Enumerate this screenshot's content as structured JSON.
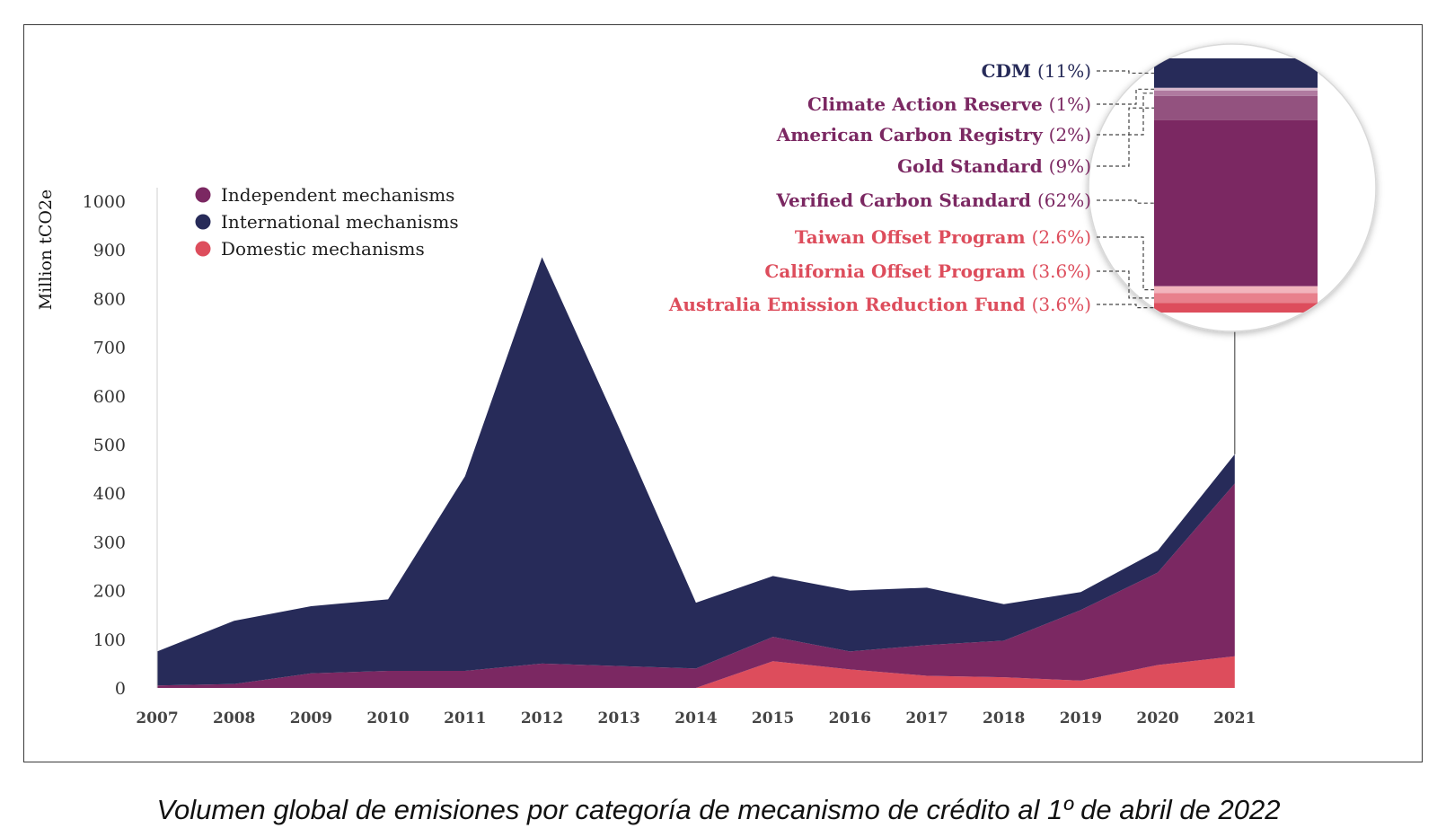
{
  "colors": {
    "independent": "#7b2862",
    "international": "#272b59",
    "domestic": "#dd4d5c",
    "axis_text": "#333333",
    "legend_text": "#1e1e1e"
  },
  "chart_data": {
    "type": "area",
    "stacked": true,
    "ylabel": "Million tCO2e",
    "xlabel": "",
    "ylim": [
      0,
      1000
    ],
    "yticks": [
      "0",
      "100",
      "200",
      "300",
      "400",
      "500",
      "600",
      "700",
      "800",
      "900",
      "1000"
    ],
    "x": [
      "2007",
      "2008",
      "2009",
      "2010",
      "2011",
      "2012",
      "2013",
      "2014",
      "2015",
      "2016",
      "2017",
      "2018",
      "2019",
      "2020",
      "2021"
    ],
    "series": [
      {
        "name": "Domestic mechanisms",
        "key": "domestic",
        "values": [
          0,
          0,
          0,
          0,
          0,
          0,
          0,
          0,
          55,
          38,
          25,
          22,
          15,
          47,
          65
        ]
      },
      {
        "name": "Independent mechanisms",
        "key": "independent",
        "values": [
          5,
          8,
          30,
          35,
          35,
          50,
          45,
          40,
          50,
          37,
          63,
          75,
          145,
          190,
          355
        ]
      },
      {
        "name": "International mechanisms",
        "key": "international",
        "values": [
          70,
          130,
          138,
          147,
          400,
          835,
          490,
          135,
          125,
          125,
          118,
          75,
          37,
          45,
          60
        ]
      }
    ],
    "legend": {
      "placement": "top-left",
      "order": [
        "Independent mechanisms",
        "International mechanisms",
        "Domestic mechanisms"
      ]
    },
    "breakdown_2021": {
      "year": "2021",
      "items": [
        {
          "label": "CDM",
          "pct": "(11%)",
          "value": 11,
          "category": "international",
          "color": "#272b59"
        },
        {
          "label": "Climate Action Reserve",
          "pct": "(1%)",
          "value": 1,
          "category": "independent",
          "color": "#d7b8cd"
        },
        {
          "label": "American Carbon Registry",
          "pct": "(2%)",
          "value": 2,
          "category": "independent",
          "color": "#b07aa0"
        },
        {
          "label": "Gold Standard",
          "pct": "(9%)",
          "value": 9,
          "category": "independent",
          "color": "#93527f"
        },
        {
          "label": "Verified Carbon Standard",
          "pct": "(62%)",
          "value": 62,
          "category": "independent",
          "color": "#7b2862"
        },
        {
          "label": "Taiwan Offset Program",
          "pct": "(2.6%)",
          "value": 2.6,
          "category": "domestic",
          "color": "#f2b4bc"
        },
        {
          "label": "California Offset Program",
          "pct": "(3.6%)",
          "value": 3.6,
          "category": "domestic",
          "color": "#e8808c"
        },
        {
          "label": "Australia Emission Reduction Fund",
          "pct": "(3.6%)",
          "value": 3.6,
          "category": "domestic",
          "color": "#dd4d5c"
        }
      ]
    }
  },
  "caption": "Volumen global de emisiones por categoría de mecanismo de crédito al 1º de abril de 2022"
}
